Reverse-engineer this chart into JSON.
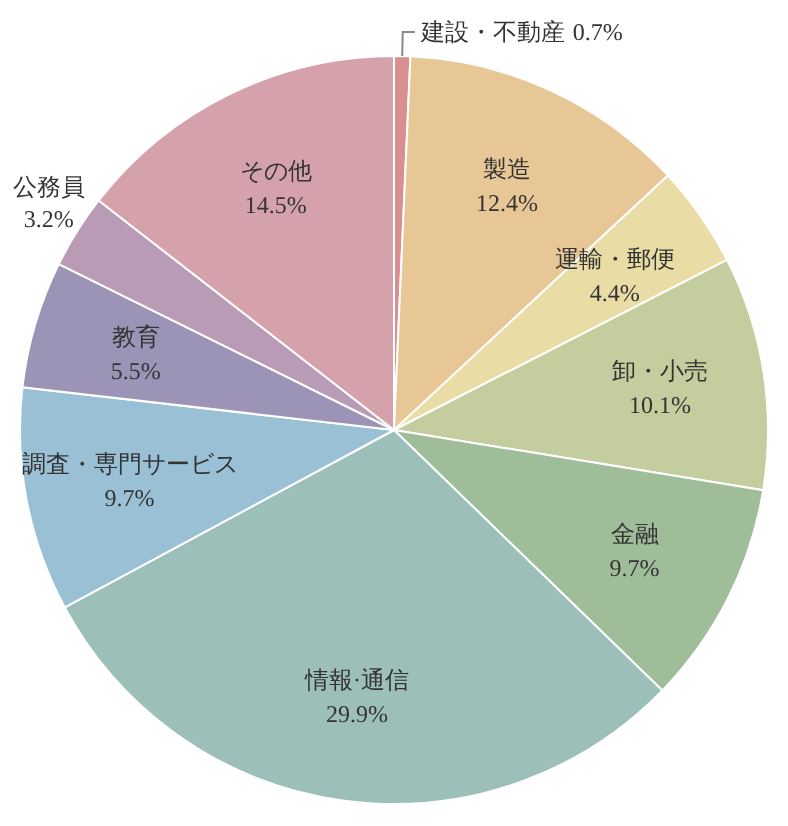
{
  "chart_data": {
    "type": "pie",
    "categories": [
      "建設・不動産",
      "製造",
      "運輸・郵便",
      "卸・小売",
      "金融",
      "情報·通信",
      "調査・専門サービス",
      "教育",
      "公務員",
      "その他"
    ],
    "values": [
      0.7,
      12.4,
      4.4,
      10.1,
      9.7,
      29.9,
      9.7,
      5.5,
      3.2,
      14.5
    ],
    "colors": [
      "#d98f8f",
      "#e8c796",
      "#e9dca5",
      "#c3cd9d",
      "#a0bd99",
      "#9cbfba",
      "#99c0d4",
      "#9c94b6",
      "#b99bb6",
      "#d5a2ab"
    ],
    "value_labels": [
      "0.7%",
      "12.4%",
      "4.4%",
      "10.1%",
      "9.7%",
      "29.9%",
      "9.7%",
      "5.5%",
      "3.2%",
      "14.5%"
    ]
  }
}
